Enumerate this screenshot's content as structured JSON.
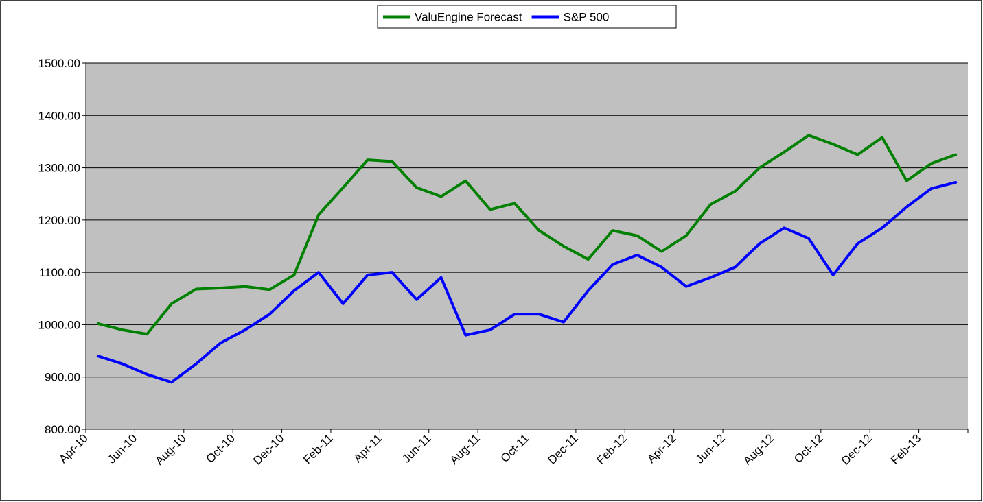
{
  "chart_data": {
    "type": "line",
    "categories": [
      "Apr-10",
      null,
      "Jun-10",
      null,
      "Aug-10",
      null,
      "Oct-10",
      null,
      "Dec-10",
      null,
      "Feb-11",
      null,
      "Apr-11",
      null,
      "Jun-11",
      null,
      "Aug-11",
      null,
      "Oct-11",
      null,
      "Dec-11",
      null,
      "Feb-12",
      null,
      "Apr-12",
      null,
      "Jun-12",
      null,
      "Aug-12",
      null,
      "Oct-12",
      null,
      "Dec-12",
      null,
      "Feb-13",
      null
    ],
    "series": [
      {
        "name": "ValuEngine Forecast",
        "color": "#008000",
        "values": [
          1002,
          990,
          982,
          1040,
          1068,
          1070,
          1073,
          1067,
          1095,
          1210,
          1262,
          1315,
          1312,
          1262,
          1245,
          1275,
          1220,
          1232,
          1180,
          1150,
          1125,
          1180,
          1170,
          1140,
          1170,
          1230,
          1255,
          1300,
          1330,
          1362,
          1345,
          1325,
          1358,
          1275,
          1308,
          1325
        ]
      },
      {
        "name": "S&P 500",
        "color": "#0000ff",
        "values": [
          940,
          925,
          905,
          890,
          925,
          965,
          990,
          1020,
          1065,
          1100,
          1040,
          1095,
          1100,
          1048,
          1090,
          980,
          990,
          1020,
          1020,
          1005,
          1065,
          1115,
          1133,
          1110,
          1073,
          1090,
          1110,
          1155,
          1185,
          1165,
          1095,
          1155,
          1185,
          1225,
          1260,
          1272
        ]
      }
    ],
    "ylim": [
      800,
      1500
    ],
    "yticks": [
      {
        "value": 800,
        "label": "800.00"
      },
      {
        "value": 900,
        "label": "900.00"
      },
      {
        "value": 1000,
        "label": "1000.00"
      },
      {
        "value": 1100,
        "label": "1100.00"
      },
      {
        "value": 1200,
        "label": "1200.00"
      },
      {
        "value": 1300,
        "label": "1300.00"
      },
      {
        "value": 1400,
        "label": "1400.00"
      },
      {
        "value": 1500,
        "label": "1500.00"
      }
    ],
    "grid": true,
    "legend": "top"
  }
}
